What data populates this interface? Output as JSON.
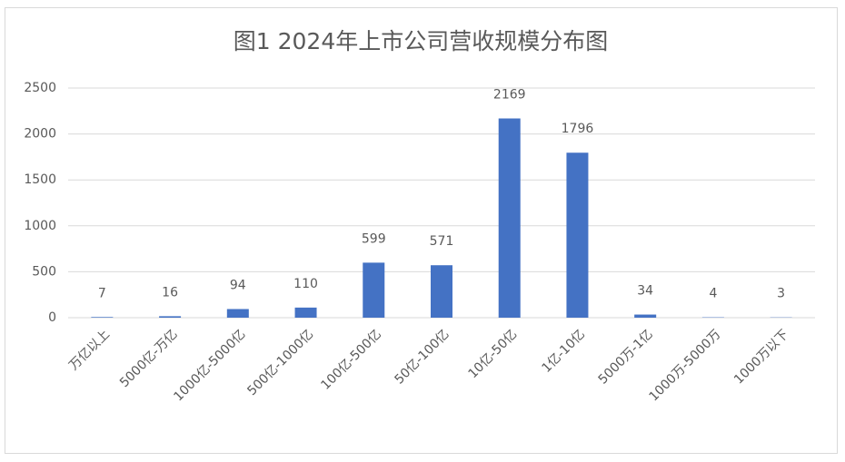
{
  "chart_data": {
    "type": "bar",
    "title": "图1  2024年上市公司营收规模分布图",
    "categories": [
      "万亿以上",
      "5000亿-万亿",
      "1000亿-5000亿",
      "500亿-1000亿",
      "100亿-500亿",
      "50亿-100亿",
      "10亿-50亿",
      "1亿-10亿",
      "5000万-1亿",
      "1000万-5000万",
      "1000万以下"
    ],
    "values": [
      7,
      16,
      94,
      110,
      599,
      571,
      2169,
      1796,
      34,
      4,
      3
    ],
    "color": "#4472c4",
    "ylim": [
      0,
      2500
    ],
    "yticks": [
      0,
      500,
      1000,
      1500,
      2000,
      2500
    ],
    "grid": true
  }
}
